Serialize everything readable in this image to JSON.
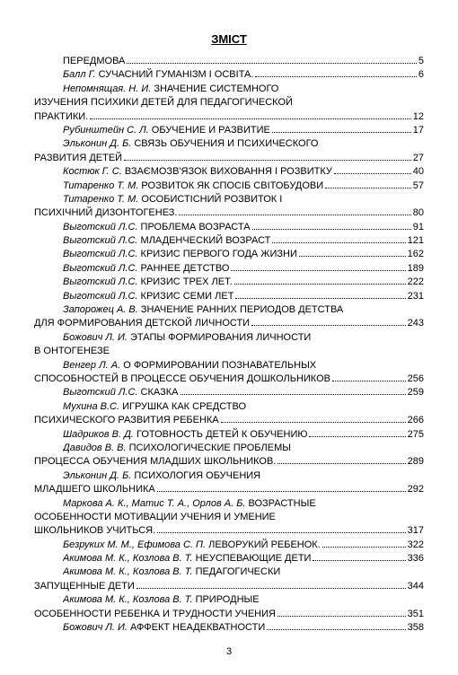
{
  "title": "ЗМІСТ",
  "pageNumber": "3",
  "entries": [
    {
      "indent": 1,
      "author": "",
      "text": "ПЕРЕДМОВА",
      "page": "5"
    },
    {
      "indent": 1,
      "author": "Балл Г. ",
      "text": "СУЧАСНИЙ ГУМАНІЗМ І ОСВІТА.",
      "page": "6"
    },
    {
      "indent": 1,
      "author": "Непомнящая. Н. И. ",
      "text": "ЗНАЧЕНИЕ СИСТЕМНОГО",
      "page": ""
    },
    {
      "indent": 0,
      "author": "",
      "text": "ИЗУЧЕНИЯ ПСИХИКИ ДЕТЕЙ ДЛЯ ПЕДАГОГИЧЕСКОЙ",
      "page": ""
    },
    {
      "indent": 0,
      "author": "",
      "text": "ПРАКТИКИ.",
      "page": "12"
    },
    {
      "indent": 1,
      "author": "Рубинштейн С. Л. ",
      "text": "ОБУЧЕНИЕ И РАЗВИТИЕ",
      "page": "17"
    },
    {
      "indent": 1,
      "author": "Эльконин Д. Б. ",
      "text": "СВЯЗЬ ОБУЧЕНИЯ И ПСИХИЧЕСКОГО",
      "page": ""
    },
    {
      "indent": 0,
      "author": "",
      "text": "РАЗВИТИЯ ДЕТЕЙ",
      "page": "27"
    },
    {
      "indent": 1,
      "author": "Костюк Г. С. ",
      "text": "ВЗАЄМОЗВ'ЯЗОК ВИХОВАННЯ І РОЗВИТКУ",
      "page": "40"
    },
    {
      "indent": 1,
      "author": "Титаренко Т. М. ",
      "text": "РОЗВИТОК ЯК СПОСІБ СВІТОБУДОВИ",
      "page": "57"
    },
    {
      "indent": 1,
      "author": "Титаренко Т. М. ",
      "text": "ОСОБИСТІСНИЙ РОЗВИТОК І",
      "page": ""
    },
    {
      "indent": 0,
      "author": "",
      "text": "ПСИХІЧНИЙ ДИЗОНТОГЕНЕЗ.",
      "page": "80"
    },
    {
      "indent": 1,
      "author": "Выготский Л.С. ",
      "text": "ПРОБЛЕМА ВОЗРАСТА",
      "page": "91"
    },
    {
      "indent": 1,
      "author": "Выготский Л.С. ",
      "text": "МЛАДЕНЧЕСКИЙ ВОЗРАСТ",
      "page": "121"
    },
    {
      "indent": 1,
      "author": "Выготский Л.С. ",
      "text": "КРИЗИС ПЕРВОГО ГОДА ЖИЗНИ",
      "page": "162"
    },
    {
      "indent": 1,
      "author": "Выготский Л.С. ",
      "text": "РАННЕЕ ДЕТСТВО",
      "page": "189"
    },
    {
      "indent": 1,
      "author": "Выготский Л.С. ",
      "text": "КРИЗИС ТРЕХ ЛЕТ.",
      "page": "222"
    },
    {
      "indent": 1,
      "author": "Выготский Л.С. ",
      "text": "КРИЗИС СЕМИ ЛЕТ",
      "page": "231"
    },
    {
      "indent": 1,
      "author": "Запорожец А. В. ",
      "text": "ЗНАЧЕНИЕ РАННИХ ПЕРИОДОВ ДЕТСТВА",
      "page": ""
    },
    {
      "indent": 0,
      "author": "",
      "text": "ДЛЯ ФОРМИРОВАНИЯ ДЕТСКОЙ ЛИЧНОСТИ",
      "page": "243"
    },
    {
      "indent": 1,
      "author": "Божович Л. И. ",
      "text": "ЭТАПЫ ФОРМИРОВАНИЯ ЛИЧНОСТИ",
      "page": ""
    },
    {
      "indent": 0,
      "author": "",
      "text": "В ОНТОГЕНЕЗЕ",
      "page": ""
    },
    {
      "indent": 1,
      "author": "Венгер Л. А. ",
      "text": "О ФОРМИРОВАНИИ ПОЗНАВАТЕЛЬНЫХ",
      "page": ""
    },
    {
      "indent": 0,
      "author": "",
      "text": "СПОСОБНОСТЕЙ В ПРОЦЕССЕ ОБУЧЕНИЯ ДОШКОЛЬНИКОВ",
      "page": "256"
    },
    {
      "indent": 1,
      "author": "Выготский Л.С. ",
      "text": "СКАЗКА",
      "page": "259"
    },
    {
      "indent": 1,
      "author": "Мухина В.С. ",
      "text": "ИГРУШКА КАК СРЕДСТВО",
      "page": ""
    },
    {
      "indent": 0,
      "author": "",
      "text": "ПСИХИЧЕСКОГО РАЗВИТИЯ РЕБЕНКА",
      "page": "266"
    },
    {
      "indent": 1,
      "author": "Шадриков В. Д. ",
      "text": "ГОТОВНОСТЬ ДЕТЕЙ К ОБУЧЕНИЮ",
      "page": "275"
    },
    {
      "indent": 1,
      "author": "Давидов В. В. ",
      "text": "ПСИХОЛОГИЧЕСКИЕ ПРОБЛЕМЫ",
      "page": ""
    },
    {
      "indent": 0,
      "author": "",
      "text": "ПРОЦЕССА ОБУЧЕНИЯ МЛАДШИХ ШКОЛЬНИКОВ.",
      "page": "289"
    },
    {
      "indent": 1,
      "author": "Эльконин Д. Б. ",
      "text": "ПСИХОЛОГИЯ ОБУЧЕНИЯ",
      "page": ""
    },
    {
      "indent": 0,
      "author": "",
      "text": "МЛАДШЕГО ШКОЛЬНИКА",
      "page": "292"
    },
    {
      "indent": 1,
      "author": "Маркова А. К., Матис Т. А., Орлов А. Б. ",
      "text": "ВОЗРАСТНЫЕ",
      "page": ""
    },
    {
      "indent": 0,
      "author": "",
      "text": "ОСОБЕННОСТИ МОТИВАЦИИ УЧЕНИЯ И УМЕНИЕ",
      "page": ""
    },
    {
      "indent": 0,
      "author": "",
      "text": "ШКОЛЬНИКОВ УЧИТЬСЯ.",
      "page": "317"
    },
    {
      "indent": 1,
      "author": "Безруких М. М., Ефимова С. П. ",
      "text": "ЛЕВОРУКИЙ РЕБЕНОК.",
      "page": "322"
    },
    {
      "indent": 1,
      "author": "Акимова М. К., Козлова В. Т. ",
      "text": "НЕУСПЕВАЮЩИЕ ДЕТИ",
      "page": "336"
    },
    {
      "indent": 1,
      "author": "Акимова М. К., Козлова В. Т. ",
      "text": "ПЕДАГОГИЧЕСКИ",
      "page": ""
    },
    {
      "indent": 0,
      "author": "",
      "text": "ЗАПУЩЕННЫЕ ДЕТИ",
      "page": "344"
    },
    {
      "indent": 1,
      "author": "Акимова М. К., Козлова В. Т. ",
      "text": "ПРИРОДНЫЕ",
      "page": ""
    },
    {
      "indent": 0,
      "author": "",
      "text": "ОСОБЕННОСТИ РЕБЕНКА И ТРУДНОСТИ УЧЕНИЯ",
      "page": "351"
    },
    {
      "indent": 1,
      "author": "Божович Л. И. ",
      "text": "АФФЕКТ НЕАДЕКВАТНОСТИ",
      "page": "358"
    }
  ]
}
